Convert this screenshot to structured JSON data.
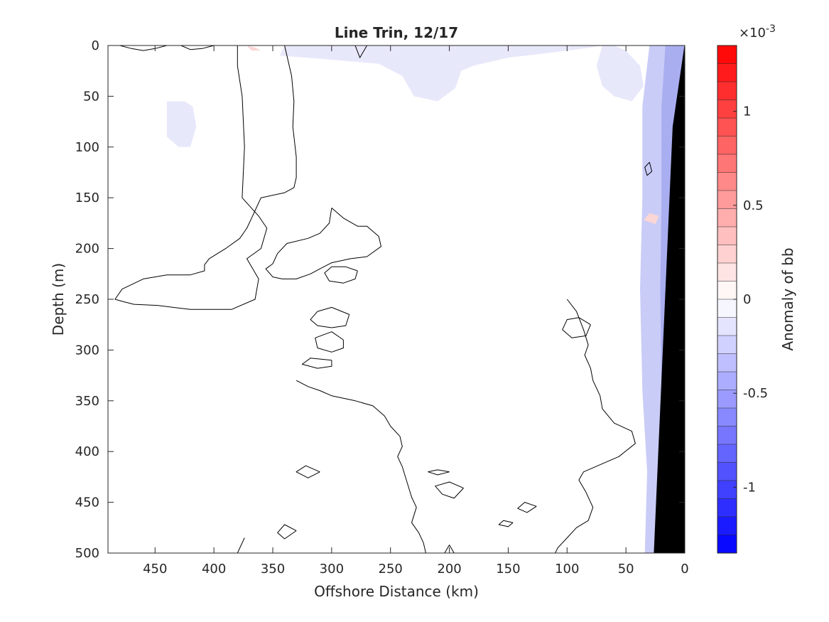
{
  "chart_data": {
    "type": "contour",
    "title": "Line Trin, 12/17",
    "xlabel": "Offshore Distance (km)",
    "ylabel": "Depth (m)",
    "xlim": [
      490,
      0
    ],
    "ylim": [
      0,
      500
    ],
    "y_reversed": true,
    "x_reversed": true,
    "xticks": [
      450,
      400,
      350,
      300,
      250,
      200,
      150,
      100,
      50,
      0
    ],
    "yticks": [
      0,
      50,
      100,
      150,
      200,
      250,
      300,
      350,
      400,
      450,
      500
    ],
    "grid": false,
    "colorbar": {
      "label": "Anomaly of bb",
      "exponent_label": "×10",
      "exponent_power": "-3",
      "range": [
        -0.00135,
        0.00135
      ],
      "ticks": [
        {
          "value": -0.001,
          "label": "-1"
        },
        {
          "value": -0.0005,
          "label": "-0.5"
        },
        {
          "value": 0,
          "label": "0"
        },
        {
          "value": 0.0005,
          "label": "0.5"
        },
        {
          "value": 0.001,
          "label": "1"
        }
      ],
      "levels": 28,
      "colors": {
        "negative": "#0000ff",
        "zero": "#ffffff",
        "positive": "#ff0000"
      }
    },
    "zero_contours_km_m": [
      [
        [
          380,
          0
        ],
        [
          380,
          20
        ],
        [
          376,
          50
        ],
        [
          374,
          100
        ],
        [
          376,
          150
        ],
        [
          362,
          168
        ],
        [
          355,
          180
        ],
        [
          360,
          200
        ],
        [
          372,
          210
        ],
        [
          362,
          230
        ],
        [
          365,
          250
        ],
        [
          385,
          260
        ],
        [
          420,
          260
        ],
        [
          448,
          256
        ],
        [
          468,
          255
        ],
        [
          478,
          252
        ],
        [
          484,
          250
        ],
        [
          478,
          240
        ],
        [
          460,
          230
        ],
        [
          440,
          226
        ],
        [
          420,
          226
        ],
        [
          408,
          222
        ],
        [
          408,
          216
        ],
        [
          404,
          210
        ],
        [
          390,
          200
        ],
        [
          378,
          190
        ],
        [
          372,
          180
        ],
        [
          368,
          170
        ],
        [
          364,
          160
        ],
        [
          360,
          150
        ],
        [
          340,
          145
        ],
        [
          332,
          140
        ],
        [
          330,
          130
        ],
        [
          330,
          110
        ],
        [
          333,
          80
        ],
        [
          332,
          55
        ],
        [
          334,
          30
        ],
        [
          338,
          10
        ],
        [
          340,
          0
        ]
      ],
      [
        [
          300,
          160
        ],
        [
          290,
          170
        ],
        [
          278,
          178
        ],
        [
          270,
          178
        ],
        [
          260,
          188
        ],
        [
          258,
          198
        ],
        [
          270,
          208
        ],
        [
          284,
          210
        ],
        [
          300,
          214
        ],
        [
          310,
          220
        ],
        [
          318,
          225
        ],
        [
          330,
          230
        ],
        [
          342,
          230
        ],
        [
          350,
          228
        ],
        [
          356,
          220
        ],
        [
          350,
          215
        ],
        [
          346,
          205
        ],
        [
          338,
          195
        ],
        [
          320,
          190
        ],
        [
          310,
          185
        ],
        [
          302,
          175
        ],
        [
          300,
          160
        ]
      ],
      [
        [
          330,
          330
        ],
        [
          320,
          336
        ],
        [
          310,
          340
        ],
        [
          300,
          345
        ],
        [
          280,
          350
        ],
        [
          265,
          355
        ],
        [
          255,
          365
        ],
        [
          250,
          375
        ],
        [
          242,
          385
        ],
        [
          240,
          395
        ],
        [
          244,
          405
        ],
        [
          240,
          415
        ],
        [
          236,
          430
        ],
        [
          232,
          445
        ],
        [
          228,
          455
        ],
        [
          232,
          470
        ],
        [
          226,
          480
        ],
        [
          222,
          490
        ],
        [
          220,
          500
        ]
      ],
      [
        [
          100,
          250
        ],
        [
          92,
          262
        ],
        [
          86,
          280
        ],
        [
          82,
          295
        ],
        [
          85,
          305
        ],
        [
          80,
          318
        ],
        [
          78,
          330
        ],
        [
          72,
          345
        ],
        [
          70,
          358
        ],
        [
          60,
          372
        ],
        [
          45,
          380
        ],
        [
          42,
          392
        ],
        [
          56,
          405
        ],
        [
          70,
          412
        ],
        [
          86,
          420
        ],
        [
          90,
          428
        ],
        [
          84,
          440
        ],
        [
          78,
          455
        ],
        [
          82,
          468
        ],
        [
          92,
          475
        ],
        [
          100,
          485
        ],
        [
          108,
          495
        ],
        [
          110,
          500
        ]
      ],
      [
        [
          278,
          222
        ],
        [
          288,
          218
        ],
        [
          300,
          218
        ],
        [
          306,
          224
        ],
        [
          302,
          232
        ],
        [
          290,
          234
        ],
        [
          280,
          230
        ],
        [
          278,
          222
        ]
      ],
      [
        [
          285,
          265
        ],
        [
          300,
          258
        ],
        [
          312,
          262
        ],
        [
          318,
          270
        ],
        [
          312,
          276
        ],
        [
          300,
          278
        ],
        [
          288,
          276
        ],
        [
          285,
          265
        ]
      ],
      [
        [
          290,
          290
        ],
        [
          300,
          282
        ],
        [
          314,
          288
        ],
        [
          312,
          298
        ],
        [
          300,
          302
        ],
        [
          290,
          298
        ],
        [
          290,
          290
        ]
      ],
      [
        [
          300,
          310
        ],
        [
          318,
          308
        ],
        [
          325,
          314
        ],
        [
          312,
          318
        ],
        [
          300,
          316
        ],
        [
          300,
          310
        ]
      ],
      [
        [
          80,
          275
        ],
        [
          90,
          268
        ],
        [
          100,
          270
        ],
        [
          104,
          280
        ],
        [
          96,
          288
        ],
        [
          84,
          286
        ],
        [
          80,
          275
        ]
      ],
      [
        [
          30,
          115
        ],
        [
          34,
          120
        ],
        [
          32,
          128
        ],
        [
          28,
          124
        ],
        [
          30,
          115
        ]
      ],
      [
        [
          310,
          420
        ],
        [
          322,
          414
        ],
        [
          330,
          420
        ],
        [
          320,
          426
        ],
        [
          310,
          420
        ]
      ],
      [
        [
          200,
          420
        ],
        [
          210,
          418
        ],
        [
          218,
          420
        ],
        [
          210,
          423
        ],
        [
          200,
          420
        ]
      ],
      [
        [
          188,
          436
        ],
        [
          200,
          430
        ],
        [
          212,
          434
        ],
        [
          206,
          442
        ],
        [
          196,
          446
        ],
        [
          188,
          436
        ]
      ],
      [
        [
          126,
          454
        ],
        [
          136,
          450
        ],
        [
          142,
          456
        ],
        [
          134,
          460
        ],
        [
          126,
          454
        ]
      ],
      [
        [
          146,
          470
        ],
        [
          154,
          468
        ],
        [
          158,
          472
        ],
        [
          150,
          474
        ],
        [
          146,
          470
        ]
      ],
      [
        [
          330,
          478
        ],
        [
          340,
          472
        ],
        [
          346,
          480
        ],
        [
          340,
          486
        ],
        [
          330,
          478
        ]
      ],
      [
        [
          480,
          0
        ],
        [
          470,
          3
        ],
        [
          460,
          5
        ],
        [
          450,
          3
        ],
        [
          440,
          0
        ]
      ],
      [
        [
          400,
          0
        ],
        [
          410,
          3
        ],
        [
          420,
          4
        ],
        [
          428,
          0
        ]
      ],
      [
        [
          270,
          0
        ],
        [
          274,
          8
        ],
        [
          276,
          12
        ],
        [
          278,
          6
        ],
        [
          280,
          0
        ]
      ],
      [
        [
          374,
          485
        ],
        [
          380,
          500
        ]
      ],
      [
        [
          204,
          500
        ],
        [
          200,
          492
        ],
        [
          196,
          500
        ]
      ]
    ],
    "negative_regions_km_m": [
      [
        [
          200,
          0
        ],
        [
          250,
          0
        ],
        [
          300,
          0
        ],
        [
          340,
          0
        ],
        [
          344,
          10
        ],
        [
          300,
          14
        ],
        [
          260,
          18
        ],
        [
          240,
          30
        ],
        [
          230,
          50
        ],
        [
          210,
          55
        ],
        [
          195,
          42
        ],
        [
          190,
          25
        ],
        [
          180,
          20
        ],
        [
          150,
          12
        ],
        [
          120,
          8
        ],
        [
          100,
          5
        ],
        [
          80,
          2
        ],
        [
          70,
          0
        ]
      ],
      [
        [
          60,
          0
        ],
        [
          70,
          0
        ],
        [
          75,
          20
        ],
        [
          70,
          40
        ],
        [
          60,
          50
        ],
        [
          45,
          55
        ],
        [
          35,
          40
        ],
        [
          38,
          20
        ],
        [
          50,
          5
        ]
      ],
      [
        [
          425,
          55
        ],
        [
          440,
          55
        ],
        [
          440,
          90
        ],
        [
          430,
          100
        ],
        [
          420,
          100
        ],
        [
          415,
          80
        ],
        [
          418,
          60
        ]
      ],
      [
        [
          0,
          0
        ],
        [
          30,
          0
        ],
        [
          36,
          60
        ],
        [
          36,
          150
        ],
        [
          38,
          240
        ],
        [
          36,
          340
        ],
        [
          32,
          420
        ],
        [
          34,
          500
        ],
        [
          0,
          500
        ]
      ]
    ],
    "positive_regions_km_m": [
      [
        [
          365,
          2
        ],
        [
          372,
          0
        ],
        [
          368,
          5
        ],
        [
          360,
          5
        ],
        [
          365,
          2
        ]
      ],
      [
        [
          22,
          168
        ],
        [
          30,
          165
        ],
        [
          35,
          172
        ],
        [
          25,
          176
        ],
        [
          22,
          168
        ]
      ]
    ],
    "land_mask_km_m": [
      [
        0,
        0
      ],
      [
        0,
        500
      ],
      [
        26,
        500
      ],
      [
        10,
        80
      ],
      [
        0,
        0
      ]
    ]
  }
}
